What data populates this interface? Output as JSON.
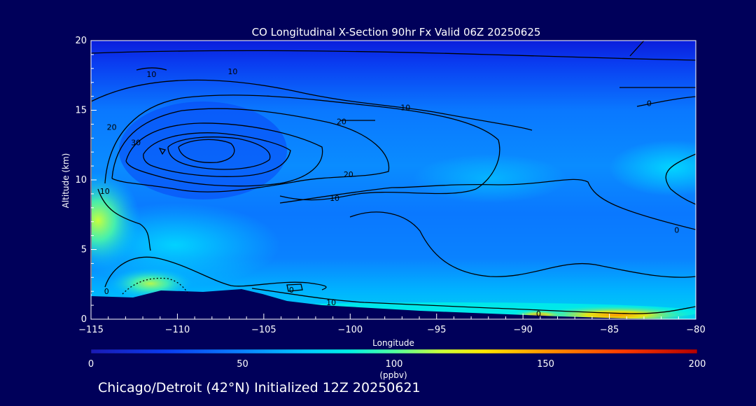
{
  "chart_data": {
    "type": "heatmap",
    "title": "CO Longitudinal X-Section 90hr  Fx Valid 06Z 20250625",
    "xlabel": "Longitude",
    "ylabel": "Altitude (km)",
    "xlim": [
      -115,
      -80
    ],
    "ylim": [
      0,
      20
    ],
    "x_ticks": [
      -115,
      -110,
      -105,
      -100,
      -95,
      -90,
      -85,
      -80
    ],
    "y_ticks": [
      0,
      5,
      10,
      15,
      20
    ],
    "colorbar": {
      "min": 0,
      "max": 200,
      "ticks": [
        0,
        50,
        100,
        150,
        200
      ],
      "label": "(ppbv)",
      "stops": [
        {
          "value": 0,
          "color": "#1a1ab4"
        },
        {
          "value": 25,
          "color": "#0a3cf0"
        },
        {
          "value": 50,
          "color": "#0a82ff"
        },
        {
          "value": 70,
          "color": "#00c8ff"
        },
        {
          "value": 85,
          "color": "#00f0e6"
        },
        {
          "value": 100,
          "color": "#50ffa0"
        },
        {
          "value": 115,
          "color": "#c8ff3c"
        },
        {
          "value": 130,
          "color": "#ffe600"
        },
        {
          "value": 150,
          "color": "#ff9600"
        },
        {
          "value": 175,
          "color": "#ff3c00"
        },
        {
          "value": 200,
          "color": "#b40000"
        }
      ]
    },
    "contour_labels": [
      {
        "text": "10",
        "lon": -111.5,
        "alt": 17.6
      },
      {
        "text": "10",
        "lon": -106.8,
        "alt": 17.8
      },
      {
        "text": "20",
        "lon": -113.8,
        "alt": 13.8
      },
      {
        "text": "30",
        "lon": -112.4,
        "alt": 12.7
      },
      {
        "text": "10",
        "lon": -114.2,
        "alt": 9.2
      },
      {
        "text": "10",
        "lon": -96.8,
        "alt": 15.2
      },
      {
        "text": "20",
        "lon": -100.5,
        "alt": 14.2
      },
      {
        "text": "20",
        "lon": -100.1,
        "alt": 10.4
      },
      {
        "text": "10",
        "lon": -100.9,
        "alt": 8.7
      },
      {
        "text": "0",
        "lon": -81.1,
        "alt": 6.4
      },
      {
        "text": "0",
        "lon": -82.7,
        "alt": 15.5
      },
      {
        "text": "0",
        "lon": -103.4,
        "alt": 2.1
      },
      {
        "text": "0",
        "lon": -114.1,
        "alt": 2.0
      },
      {
        "text": "10",
        "lon": -101.1,
        "alt": 1.2
      },
      {
        "text": "0",
        "lon": -89.1,
        "alt": 0.4
      }
    ]
  },
  "footer": "Chicago/Detroit (42°N) Initialized 12Z 20250621"
}
